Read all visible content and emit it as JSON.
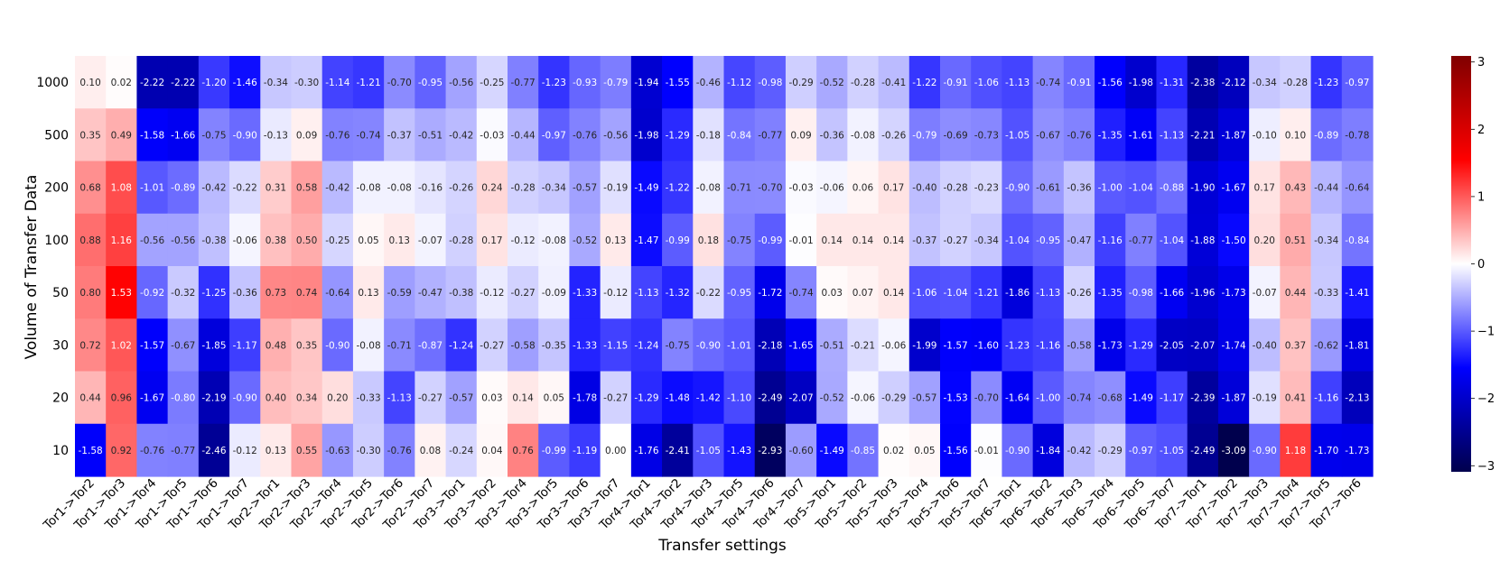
{
  "chart_data": {
    "type": "heatmap",
    "title": "",
    "xlabel": "Transfer settings",
    "ylabel": "Volume of Transfer Data",
    "x_categories": [
      "Tor1->Tor2",
      "Tor1->Tor3",
      "Tor1->Tor4",
      "Tor1->Tor5",
      "Tor1->Tor6",
      "Tor1->Tor7",
      "Tor2->Tor1",
      "Tor2->Tor3",
      "Tor2->Tor4",
      "Tor2->Tor5",
      "Tor2->Tor6",
      "Tor2->Tor7",
      "Tor3->Tor1",
      "Tor3->Tor2",
      "Tor3->Tor4",
      "Tor3->Tor5",
      "Tor3->Tor6",
      "Tor3->Tor7",
      "Tor4->Tor1",
      "Tor4->Tor2",
      "Tor4->Tor3",
      "Tor4->Tor5",
      "Tor4->Tor6",
      "Tor4->Tor7",
      "Tor5->Tor1",
      "Tor5->Tor2",
      "Tor5->Tor3",
      "Tor5->Tor4",
      "Tor5->Tor6",
      "Tor5->Tor7",
      "Tor6->Tor1",
      "Tor6->Tor2",
      "Tor6->Tor3",
      "Tor6->Tor4",
      "Tor6->Tor5",
      "Tor6->Tor7",
      "Tor7->Tor1",
      "Tor7->Tor2",
      "Tor7->Tor3",
      "Tor7->Tor4",
      "Tor7->Tor5",
      "Tor7->Tor6"
    ],
    "y_categories": [
      "1000",
      "500",
      "200",
      "100",
      "50",
      "30",
      "20",
      "10"
    ],
    "values": [
      [
        "0.10",
        "0.02",
        "-2.22",
        "-2.22",
        "-1.20",
        "-1.46",
        "-0.34",
        "-0.30",
        "-1.14",
        "-1.21",
        "-0.70",
        "-0.95",
        "-0.56",
        "-0.25",
        "-0.77",
        "-1.23",
        "-0.93",
        "-0.79",
        "-1.94",
        "-1.55",
        "-0.46",
        "-1.12",
        "-0.98",
        "-0.29",
        "-0.52",
        "-0.28",
        "-0.41",
        "-1.22",
        "-0.91",
        "-1.06",
        "-1.13",
        "-0.74",
        "-0.91",
        "-1.56",
        "-1.98",
        "-1.31",
        "-2.38",
        "-2.12",
        "-0.34",
        "-0.28",
        "-1.23",
        "-0.97"
      ],
      [
        "0.35",
        "0.49",
        "-1.58",
        "-1.66",
        "-0.75",
        "-0.90",
        "-0.13",
        "0.09",
        "-0.76",
        "-0.74",
        "-0.37",
        "-0.51",
        "-0.42",
        "-0.03",
        "-0.44",
        "-0.97",
        "-0.76",
        "-0.56",
        "-1.98",
        "-1.29",
        "-0.18",
        "-0.84",
        "-0.77",
        "0.09",
        "-0.36",
        "-0.08",
        "-0.26",
        "-0.79",
        "-0.69",
        "-0.73",
        "-1.05",
        "-0.67",
        "-0.76",
        "-1.35",
        "-1.61",
        "-1.13",
        "-2.21",
        "-1.87",
        "-0.10",
        "0.10",
        "-0.89",
        "-0.78"
      ],
      [
        "0.68",
        "1.08",
        "-1.01",
        "-0.89",
        "-0.42",
        "-0.22",
        "0.31",
        "0.58",
        "-0.42",
        "-0.08",
        "-0.08",
        "-0.16",
        "-0.26",
        "0.24",
        "-0.28",
        "-0.34",
        "-0.57",
        "-0.19",
        "-1.49",
        "-1.22",
        "-0.08",
        "-0.71",
        "-0.70",
        "-0.03",
        "-0.06",
        "0.06",
        "0.17",
        "-0.40",
        "-0.28",
        "-0.23",
        "-0.90",
        "-0.61",
        "-0.36",
        "-1.00",
        "-1.04",
        "-0.88",
        "-1.90",
        "-1.67",
        "0.17",
        "0.43",
        "-0.44",
        "-0.64"
      ],
      [
        "0.88",
        "1.16",
        "-0.56",
        "-0.56",
        "-0.38",
        "-0.06",
        "0.38",
        "0.50",
        "-0.25",
        "0.05",
        "0.13",
        "-0.07",
        "-0.28",
        "0.17",
        "-0.12",
        "-0.08",
        "-0.52",
        "0.13",
        "-1.47",
        "-0.99",
        "0.18",
        "-0.75",
        "-0.99",
        "-0.01",
        "0.14",
        "0.14",
        "0.14",
        "-0.37",
        "-0.27",
        "-0.34",
        "-1.04",
        "-0.95",
        "-0.47",
        "-1.16",
        "-0.77",
        "-1.04",
        "-1.88",
        "-1.50",
        "0.20",
        "0.51",
        "-0.34",
        "-0.84"
      ],
      [
        "0.80",
        "1.53",
        "-0.92",
        "-0.32",
        "-1.25",
        "-0.36",
        "0.73",
        "0.74",
        "-0.64",
        "0.13",
        "-0.59",
        "-0.47",
        "-0.38",
        "-0.12",
        "-0.27",
        "-0.09",
        "-1.33",
        "-0.12",
        "-1.13",
        "-1.32",
        "-0.22",
        "-0.95",
        "-1.72",
        "-0.74",
        "0.03",
        "0.07",
        "0.14",
        "-1.06",
        "-1.04",
        "-1.21",
        "-1.86",
        "-1.13",
        "-0.26",
        "-1.35",
        "-0.98",
        "-1.66",
        "-1.96",
        "-1.73",
        "-0.07",
        "0.44",
        "-0.33",
        "-1.41"
      ],
      [
        "0.72",
        "1.02",
        "-1.57",
        "-0.67",
        "-1.85",
        "-1.17",
        "0.48",
        "0.35",
        "-0.90",
        "-0.08",
        "-0.71",
        "-0.87",
        "-1.24",
        "-0.27",
        "-0.58",
        "-0.35",
        "-1.33",
        "-1.15",
        "-1.24",
        "-0.75",
        "-0.90",
        "-1.01",
        "-2.18",
        "-1.65",
        "-0.51",
        "-0.21",
        "-0.06",
        "-1.99",
        "-1.57",
        "-1.60",
        "-1.23",
        "-1.16",
        "-0.58",
        "-1.73",
        "-1.29",
        "-2.05",
        "-2.07",
        "-1.74",
        "-0.40",
        "0.37",
        "-0.62",
        "-1.81"
      ],
      [
        "0.44",
        "0.96",
        "-1.67",
        "-0.80",
        "-2.19",
        "-0.90",
        "0.40",
        "0.34",
        "0.20",
        "-0.33",
        "-1.13",
        "-0.27",
        "-0.57",
        "0.03",
        "0.14",
        "0.05",
        "-1.78",
        "-0.27",
        "-1.29",
        "-1.48",
        "-1.42",
        "-1.10",
        "-2.49",
        "-2.07",
        "-0.52",
        "-0.06",
        "-0.29",
        "-0.57",
        "-1.53",
        "-0.70",
        "-1.64",
        "-1.00",
        "-0.74",
        "-0.68",
        "-1.49",
        "-1.17",
        "-2.39",
        "-1.87",
        "-0.19",
        "0.41",
        "-1.16",
        "-2.13"
      ],
      [
        "-1.58",
        "0.92",
        "-0.76",
        "-0.77",
        "-2.46",
        "-0.12",
        "0.13",
        "0.55",
        "-0.63",
        "-0.30",
        "-0.76",
        "0.08",
        "-0.24",
        "0.04",
        "0.76",
        "-0.99",
        "-1.19",
        "0.00",
        "-1.76",
        "-2.41",
        "-1.05",
        "-1.43",
        "-2.93",
        "-0.60",
        "-1.49",
        "-0.85",
        "0.02",
        "0.05",
        "-1.56",
        "-0.01",
        "-0.90",
        "-1.84",
        "-0.42",
        "-0.29",
        "-0.97",
        "-1.05",
        "-2.49",
        "-3.09",
        "-0.90",
        "1.18",
        "-1.70",
        "-1.73"
      ]
    ],
    "colormap": "seismic",
    "vmin": -3.09,
    "vmax": 3.09,
    "colorbar_ticks": [
      "3",
      "2",
      "1",
      "0",
      "−1",
      "−2",
      "−3"
    ],
    "colorbar_tick_values": [
      3,
      2,
      1,
      0,
      -1,
      -2,
      -3
    ]
  }
}
